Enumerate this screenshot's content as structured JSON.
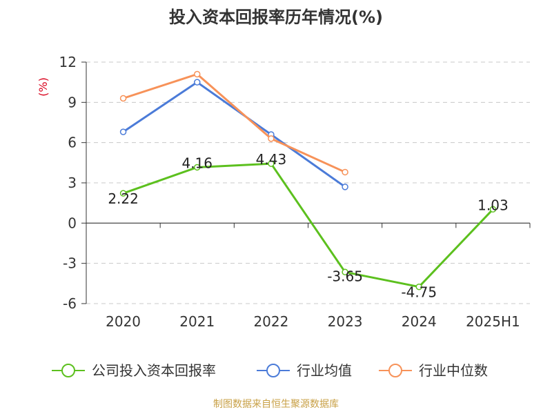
{
  "chart_data": {
    "type": "line",
    "title": "投入资本回报率历年情况(%)",
    "ylabel": "(%)",
    "categories": [
      "2020",
      "2021",
      "2022",
      "2023",
      "2024",
      "2025H1"
    ],
    "ylim": [
      -6,
      12
    ],
    "yticks": [
      -6,
      -3,
      0,
      3,
      6,
      9,
      12
    ],
    "grid": true,
    "legend_position": "bottom",
    "series": [
      {
        "name": "公司投入资本回报率",
        "color": "#5cc01e",
        "values": [
          2.22,
          4.16,
          4.43,
          -3.65,
          -4.75,
          1.03
        ],
        "labels": [
          "2.22",
          "4.16",
          "4.43",
          "-3.65",
          "-4.75",
          "1.03"
        ]
      },
      {
        "name": "行业均值",
        "color": "#4b7bd8",
        "values": [
          6.8,
          10.5,
          6.6,
          2.7,
          null,
          null
        ]
      },
      {
        "name": "行业中位数",
        "color": "#f79259",
        "values": [
          9.3,
          11.1,
          6.3,
          3.8,
          null,
          null
        ]
      }
    ]
  },
  "source": "制图数据来自恒生聚源数据库"
}
